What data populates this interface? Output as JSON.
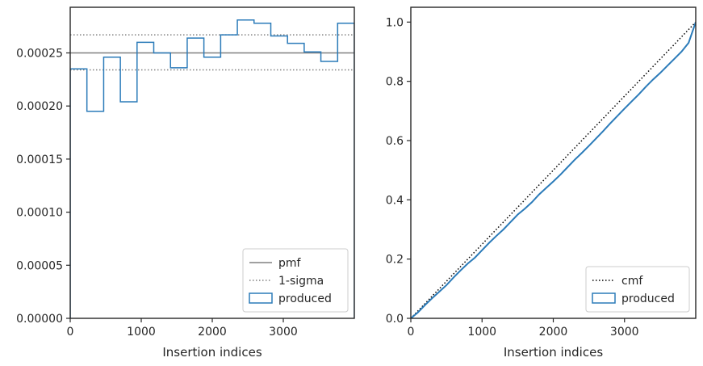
{
  "chart_data": [
    {
      "type": "histogram",
      "xlabel": "Insertion indices",
      "ylabel": "",
      "xlim": [
        0,
        4000
      ],
      "ylim": [
        0,
        0.000293
      ],
      "xticks": [
        0,
        1000,
        2000,
        3000
      ],
      "xtick_labels": [
        "0",
        "1000",
        "2000",
        "3000"
      ],
      "yticks": [
        0,
        5e-05,
        0.0001,
        0.00015,
        0.0002,
        0.00025
      ],
      "ytick_labels": [
        "0.00000",
        "0.00005",
        "0.00010",
        "0.00015",
        "0.00020",
        "0.00025"
      ],
      "grid": false,
      "legend_position": "lower-right",
      "legend": [
        "pmf",
        "1-sigma",
        "produced"
      ],
      "lines": {
        "pmf": 0.00025,
        "sigma_upper": 0.000267,
        "sigma_lower": 0.000234
      },
      "colors": {
        "pmf": "#808080",
        "sigma": "#808080",
        "produced": "#2b7bb9"
      },
      "bin_edges": [
        0,
        235,
        471,
        706,
        941,
        1176,
        1412,
        1647,
        1882,
        2118,
        2353,
        2588,
        2824,
        3059,
        3294,
        3529,
        3765,
        4000
      ],
      "values": [
        0.000235,
        0.000195,
        0.000246,
        0.000204,
        0.00026,
        0.00025,
        0.000236,
        0.000264,
        0.000246,
        0.000267,
        0.000281,
        0.000278,
        0.000266,
        0.000259,
        0.000251,
        0.000242,
        0.000278
      ]
    },
    {
      "type": "line",
      "xlabel": "Insertion indices",
      "ylabel": "",
      "xlim": [
        0,
        4000
      ],
      "ylim": [
        0,
        1.05
      ],
      "xticks": [
        0,
        1000,
        2000,
        3000
      ],
      "xtick_labels": [
        "0",
        "1000",
        "2000",
        "3000"
      ],
      "yticks": [
        0,
        0.2,
        0.4,
        0.6,
        0.8,
        1.0
      ],
      "ytick_labels": [
        "0.0",
        "0.2",
        "0.4",
        "0.6",
        "0.8",
        "1.0"
      ],
      "grid": false,
      "legend_position": "lower-right",
      "legend": [
        "cmf",
        "produced"
      ],
      "colors": {
        "cmf": "#000000",
        "produced": "#2b7bb9"
      },
      "series": [
        {
          "name": "cmf",
          "x": [
            0,
            4000
          ],
          "y": [
            0,
            1.0
          ]
        },
        {
          "name": "produced",
          "x": [
            0,
            100,
            200,
            300,
            400,
            500,
            600,
            700,
            800,
            900,
            1000,
            1100,
            1200,
            1300,
            1400,
            1500,
            1600,
            1700,
            1800,
            1900,
            2000,
            2100,
            2200,
            2300,
            2400,
            2500,
            2600,
            2700,
            2800,
            2900,
            3000,
            3100,
            3200,
            3300,
            3400,
            3500,
            3600,
            3700,
            3800,
            3900,
            4000
          ],
          "y": [
            0,
            0.02,
            0.045,
            0.068,
            0.09,
            0.112,
            0.138,
            0.162,
            0.185,
            0.205,
            0.23,
            0.255,
            0.278,
            0.3,
            0.325,
            0.35,
            0.37,
            0.392,
            0.418,
            0.44,
            0.462,
            0.485,
            0.51,
            0.535,
            0.558,
            0.582,
            0.607,
            0.632,
            0.658,
            0.683,
            0.708,
            0.732,
            0.756,
            0.782,
            0.806,
            0.828,
            0.852,
            0.876,
            0.9,
            0.93,
            1.0
          ]
        }
      ]
    }
  ]
}
